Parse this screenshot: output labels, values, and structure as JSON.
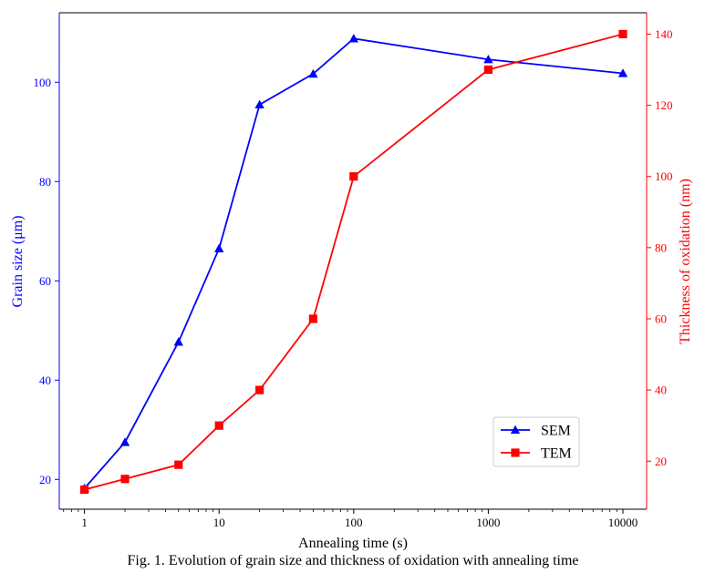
{
  "caption": "Fig. 1. Evolution of grain size and thickness of oxidation with annealing time",
  "chart_data": {
    "type": "line",
    "xscale": "log",
    "xlabel": "Annealing time (s)",
    "xlim": [
      0.65,
      15000
    ],
    "xticks": [
      {
        "value": 1,
        "label": "1"
      },
      {
        "value": 10,
        "label": "10"
      },
      {
        "value": 100,
        "label": "100"
      },
      {
        "value": 1000,
        "label": "1000"
      },
      {
        "value": 10000,
        "label": "10000"
      }
    ],
    "left_axis": {
      "label": "Grain size (μm)",
      "color": "#0000ff",
      "ylim": [
        14,
        114
      ],
      "ticks": [
        20,
        40,
        60,
        80,
        100
      ]
    },
    "right_axis": {
      "label": "Thickness of oxidation (nm)",
      "color": "#ff0000",
      "ylim": [
        6.5,
        146
      ],
      "ticks": [
        20,
        40,
        60,
        80,
        100,
        120,
        140
      ]
    },
    "series": [
      {
        "name": "SEM",
        "axis": "left",
        "color": "#0000ff",
        "marker": "triangle",
        "x": [
          1,
          2,
          5,
          10,
          20,
          50,
          100,
          1000,
          10000
        ],
        "y": [
          18.2,
          27.5,
          47.7,
          66.5,
          95.5,
          101.7,
          108.8,
          104.6,
          101.8
        ]
      },
      {
        "name": "TEM",
        "axis": "right",
        "color": "#ff0000",
        "marker": "square",
        "x": [
          1,
          2,
          5,
          10,
          20,
          50,
          100,
          1000,
          10000
        ],
        "y": [
          12,
          15,
          19,
          30,
          40,
          60,
          100,
          130,
          140
        ]
      }
    ],
    "legend": {
      "placement": "lower-right"
    },
    "grid": false
  }
}
